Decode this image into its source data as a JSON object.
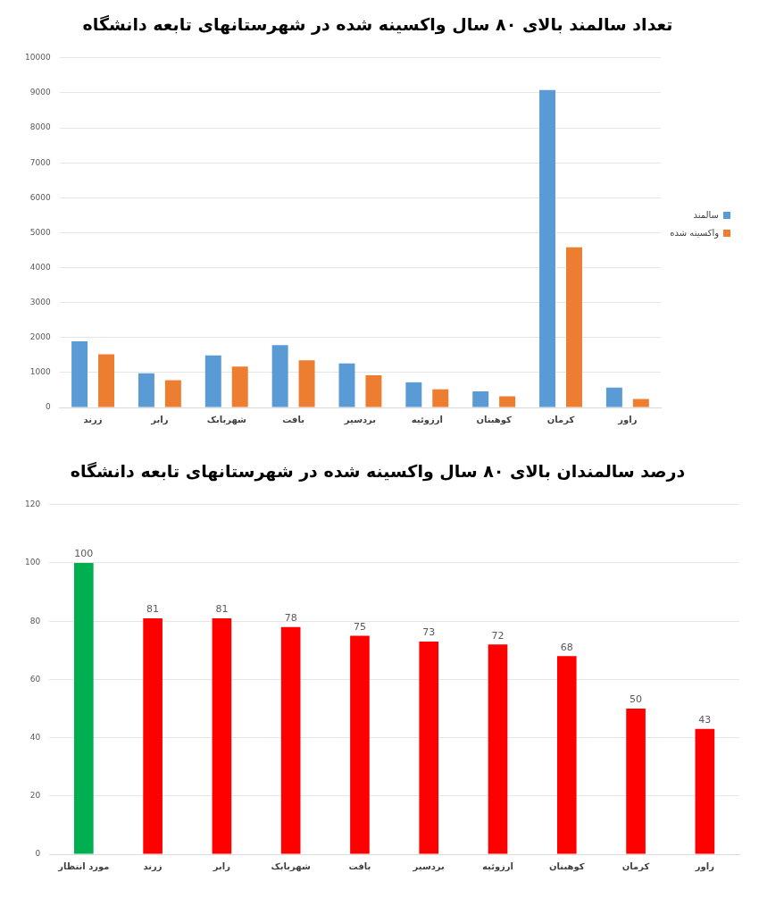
{
  "chart_data": [
    {
      "type": "bar",
      "title": "تعداد سالمند بالای ۸۰ سال واکسینه شده در شهرستانهای تابعه دانشگاه",
      "categories": [
        "زرند",
        "رابر",
        "شهربابک",
        "بافت",
        "بردسیر",
        "ارزوئیه",
        "کوهبنان",
        "کرمان",
        "راور"
      ],
      "series": [
        {
          "name": "سالمند",
          "color": "#5b9bd5",
          "values": [
            1890,
            975,
            1490,
            1780,
            1260,
            720,
            460,
            9080,
            570
          ]
        },
        {
          "name": "واکسینه شده",
          "color": "#ed7d31",
          "values": [
            1520,
            780,
            1170,
            1350,
            920,
            520,
            320,
            4580,
            240
          ]
        }
      ],
      "ylim": [
        0,
        10000
      ],
      "yticks": [
        0,
        1000,
        2000,
        3000,
        4000,
        5000,
        6000,
        7000,
        8000,
        9000,
        10000
      ],
      "grid": "y",
      "legend": "right"
    },
    {
      "type": "bar",
      "title": "درصد سالمندان بالای ۸۰ سال واکسینه شده در شهرستانهای تابعه دانشگاه",
      "categories": [
        "مورد انتظار",
        "زرند",
        "رابر",
        "شهربابک",
        "بافت",
        "بردسیر",
        "ارزوئیه",
        "کوهبنان",
        "کرمان",
        "راور"
      ],
      "values": [
        100,
        81,
        81,
        78,
        75,
        73,
        72,
        68,
        50,
        43
      ],
      "colors": [
        "#00b050",
        "#ff0000",
        "#ff0000",
        "#ff0000",
        "#ff0000",
        "#ff0000",
        "#ff0000",
        "#ff0000",
        "#ff0000",
        "#ff0000"
      ],
      "ylim": [
        0,
        120
      ],
      "yticks": [
        0,
        20,
        40,
        60,
        80,
        100,
        120
      ],
      "grid": "y",
      "data_labels": true
    }
  ]
}
